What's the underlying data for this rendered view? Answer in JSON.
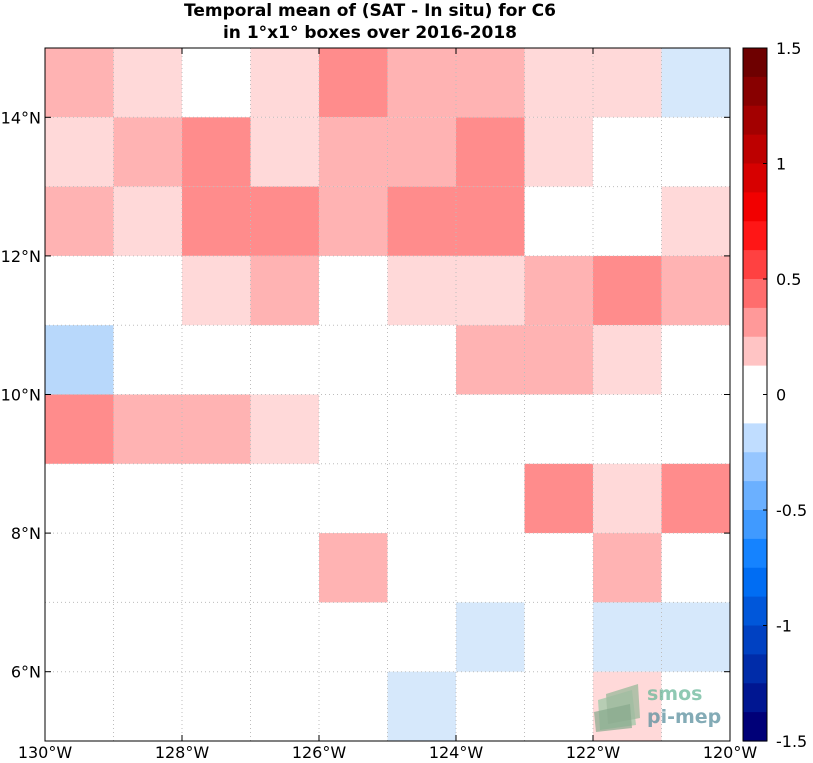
{
  "chart_data": {
    "type": "heatmap",
    "title": "Temporal mean of (SAT - In situ) for C6",
    "subtitle": "in 1°x1° boxes over 2016-2018",
    "x_ticks": [
      "130°W",
      "128°W",
      "126°W",
      "124°W",
      "122°W",
      "120°W"
    ],
    "y_ticks": [
      "6°N",
      "8°N",
      "10°N",
      "12°N",
      "14°N"
    ],
    "lon_range": [
      -130,
      -120
    ],
    "lat_range": [
      5,
      15
    ],
    "grid": true,
    "colorbar": {
      "ticks": [
        "1.5",
        "1",
        "0.5",
        "0",
        "-0.5",
        "-1",
        "-1.5"
      ],
      "range": [
        -1.5,
        1.5
      ],
      "steps": 24
    },
    "cells_lat_rows_north_to_south": [
      {
        "lat": "14-15",
        "values": [
          0.25,
          0.15,
          null,
          0.15,
          0.4,
          0.25,
          0.25,
          0.15,
          0.15,
          -0.15
        ]
      },
      {
        "lat": "13-14",
        "values": [
          0.15,
          0.25,
          0.4,
          0.15,
          0.25,
          0.25,
          0.4,
          0.15,
          null,
          null
        ]
      },
      {
        "lat": "12-13",
        "values": [
          0.25,
          0.15,
          0.4,
          0.4,
          0.25,
          0.4,
          0.4,
          null,
          null,
          0.15
        ]
      },
      {
        "lat": "11-12",
        "values": [
          null,
          null,
          0.15,
          0.25,
          null,
          0.15,
          0.15,
          0.25,
          0.4,
          0.25
        ]
      },
      {
        "lat": "10-11",
        "values": [
          -0.25,
          null,
          null,
          null,
          null,
          null,
          0.25,
          0.25,
          0.15,
          null
        ]
      },
      {
        "lat": "9-10",
        "values": [
          0.4,
          0.25,
          0.25,
          0.15,
          null,
          null,
          null,
          null,
          null,
          null
        ]
      },
      {
        "lat": "8-9",
        "values": [
          null,
          null,
          null,
          null,
          null,
          null,
          null,
          0.4,
          0.15,
          0.4
        ]
      },
      {
        "lat": "7-8",
        "values": [
          null,
          null,
          null,
          null,
          0.25,
          null,
          null,
          null,
          0.25,
          null
        ]
      },
      {
        "lat": "6-7",
        "values": [
          null,
          null,
          null,
          null,
          null,
          null,
          -0.15,
          null,
          -0.15,
          -0.15
        ]
      },
      {
        "lat": "5-6",
        "values": [
          null,
          null,
          null,
          null,
          null,
          -0.15,
          null,
          null,
          0.15,
          null
        ]
      }
    ]
  },
  "colors": {
    "pos1": "#ffd9d9",
    "pos2": "#ffb3b3",
    "pos3": "#ff8c8c",
    "neg1": "#d6e8fb",
    "neg2": "#b8d8fb"
  },
  "logo": {
    "line1": "smos",
    "line2": "pi-mep"
  }
}
